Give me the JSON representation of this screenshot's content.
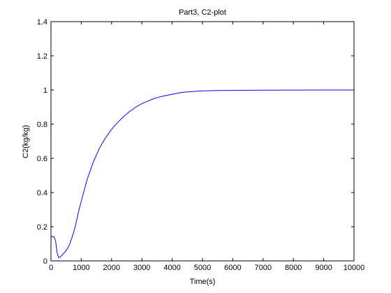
{
  "chart_data": {
    "type": "line",
    "title": "Part3, C2-plot",
    "xlabel": "Time(s)",
    "ylabel": "C2(kg/kg)",
    "xlim": [
      0,
      10000
    ],
    "ylim": [
      0,
      1.4
    ],
    "xticks": [
      0,
      1000,
      2000,
      3000,
      4000,
      5000,
      6000,
      7000,
      8000,
      9000,
      10000
    ],
    "yticks": [
      0,
      0.2,
      0.4,
      0.6,
      0.8,
      1,
      1.2,
      1.4
    ],
    "xtick_labels": [
      "0",
      "1000",
      "2000",
      "3000",
      "4000",
      "5000",
      "6000",
      "7000",
      "8000",
      "9000",
      "10000"
    ],
    "ytick_labels": [
      "0",
      "0.2",
      "0.4",
      "0.6",
      "0.8",
      "1",
      "1.2",
      "1.4"
    ],
    "grid": false,
    "series": [
      {
        "color": "#0000ff",
        "x": [
          0,
          100,
          150,
          200,
          250,
          300,
          400,
          500,
          600,
          700,
          800,
          900,
          1000,
          1200,
          1400,
          1600,
          1800,
          2000,
          2200,
          2400,
          2600,
          2800,
          3000,
          3200,
          3400,
          3600,
          3800,
          4000,
          4200,
          4400,
          4600,
          4800,
          5000,
          5500,
          6000,
          7000,
          8000,
          9000,
          10000
        ],
        "y": [
          0.145,
          0.14,
          0.12,
          0.05,
          0.02,
          0.022,
          0.04,
          0.06,
          0.09,
          0.14,
          0.2,
          0.28,
          0.35,
          0.48,
          0.58,
          0.66,
          0.72,
          0.77,
          0.81,
          0.845,
          0.875,
          0.9,
          0.92,
          0.935,
          0.95,
          0.96,
          0.968,
          0.975,
          0.982,
          0.987,
          0.99,
          0.993,
          0.995,
          0.997,
          0.998,
          0.999,
          0.9995,
          1.0,
          1.0
        ]
      }
    ]
  }
}
